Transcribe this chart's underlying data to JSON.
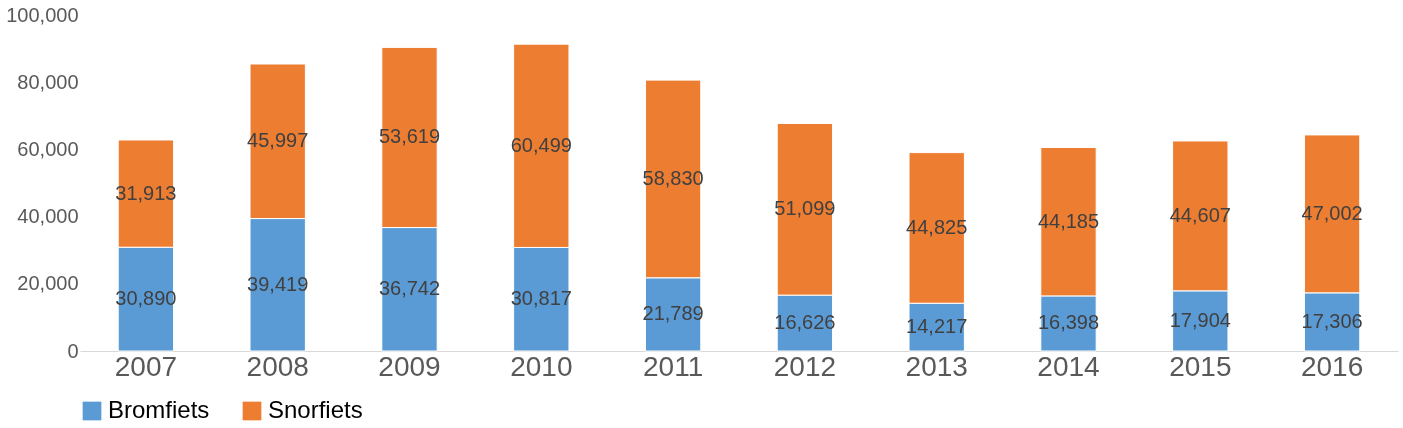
{
  "chart_data": {
    "type": "bar",
    "stacked": true,
    "categories": [
      "2007",
      "2008",
      "2009",
      "2010",
      "2011",
      "2012",
      "2013",
      "2014",
      "2015",
      "2016"
    ],
    "series": [
      {
        "name": "Bromfiets",
        "color": "#5b9bd5",
        "values": [
          30890,
          39419,
          36742,
          30817,
          21789,
          16626,
          14217,
          16398,
          17904,
          17306
        ],
        "value_labels": [
          "30,890",
          "39,419",
          "36,742",
          "30,817",
          "21,789",
          "16,626",
          "14,217",
          "16,398",
          "17,904",
          "17,306"
        ]
      },
      {
        "name": "Snorfiets",
        "color": "#ed7d31",
        "values": [
          31913,
          45997,
          53619,
          60499,
          58830,
          51099,
          44825,
          44185,
          44607,
          47002
        ],
        "value_labels": [
          "31,913",
          "45,997",
          "53,619",
          "60,499",
          "58,830",
          "51,099",
          "44,825",
          "44,185",
          "44,607",
          "47,002"
        ]
      }
    ],
    "ylim": [
      0,
      100000
    ],
    "yticks": [
      {
        "value": 0,
        "label": "0"
      },
      {
        "value": 20000,
        "label": "20,000"
      },
      {
        "value": 40000,
        "label": "40,000"
      },
      {
        "value": 60000,
        "label": "60,000"
      },
      {
        "value": 80000,
        "label": "80,000"
      },
      {
        "value": 100000,
        "label": "100,000"
      }
    ],
    "grid": false,
    "legend": "bottom"
  }
}
